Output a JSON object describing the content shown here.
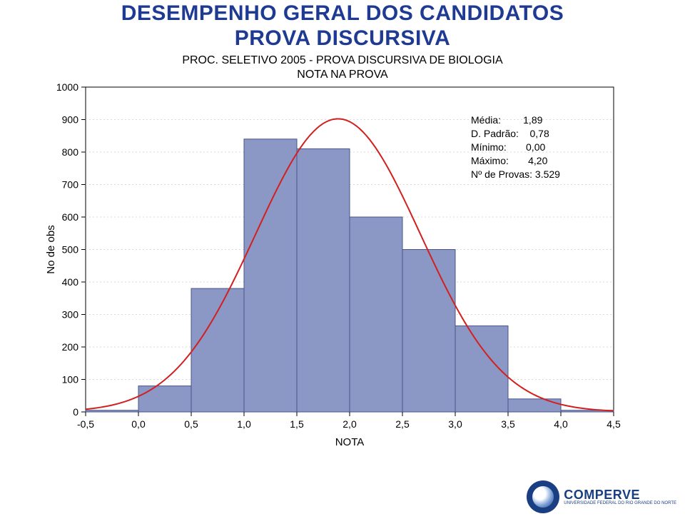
{
  "title": {
    "line1": "DESEMPENHO GERAL DOS CANDIDATOS",
    "line2": "PROVA DISCURSIVA",
    "color": "#1f3a93",
    "fontsize": 30,
    "weight": "bold"
  },
  "subtitle": {
    "line1": "PROC. SELETIVO 2005 - PROVA DISCURSIVA DE BIOLOGIA",
    "line2": "NOTA NA PROVA",
    "color": "#000000",
    "fontsize": 16
  },
  "chart": {
    "type": "histogram",
    "background_color": "#ffffff",
    "plot_background": "#ffffff",
    "axis_color": "#000000",
    "grid_color": "#d9d9d9",
    "grid_on": true,
    "grid_dash": "2,3",
    "xlim": [
      -0.5,
      4.5
    ],
    "ylim": [
      0,
      1000
    ],
    "xtick_step": 0.5,
    "ytick_step": 100,
    "xticks": [
      "-0,5",
      "0,0",
      "0,5",
      "1,0",
      "1,5",
      "2,0",
      "2,5",
      "3,0",
      "3,5",
      "4,0",
      "4,5"
    ],
    "yticks": [
      "0",
      "100",
      "200",
      "300",
      "400",
      "500",
      "600",
      "700",
      "800",
      "900",
      "1000"
    ],
    "xlabel": "NOTA",
    "ylabel": "No de obs",
    "label_fontsize": 15,
    "tick_fontsize": 14,
    "bars": {
      "bin_edges": [
        -0.5,
        0.0,
        0.5,
        1.0,
        1.5,
        2.0,
        2.5,
        3.0,
        3.5,
        4.0,
        4.5
      ],
      "values": [
        5,
        80,
        380,
        840,
        810,
        600,
        500,
        265,
        40,
        5
      ],
      "fill_color": "#8b97c5",
      "stroke_color": "#4a548a",
      "stroke_width": 1,
      "bar_width_ratio": 1.0
    },
    "curve": {
      "type": "normal",
      "mean": 1.89,
      "sd": 0.78,
      "n": 3529,
      "bin_width": 0.5,
      "stroke_color": "#d22020",
      "stroke_width": 2
    }
  },
  "stats": {
    "rows": [
      {
        "label": "Média:",
        "value": "1,89"
      },
      {
        "label": "D. Padrão:",
        "value": "0,78"
      },
      {
        "label": "Mínimo:",
        "value": "0,00"
      },
      {
        "label": "Máximo:",
        "value": "4,20"
      },
      {
        "label": "Nº de Provas:",
        "value": "3.529"
      }
    ],
    "fontsize": 14,
    "color": "#000000"
  },
  "logo": {
    "brand": "COMPERVE",
    "sub": "UNIVERSIDADE FEDERAL DO RIO GRANDE DO NORTE",
    "brand_color": "#1a3e82"
  }
}
